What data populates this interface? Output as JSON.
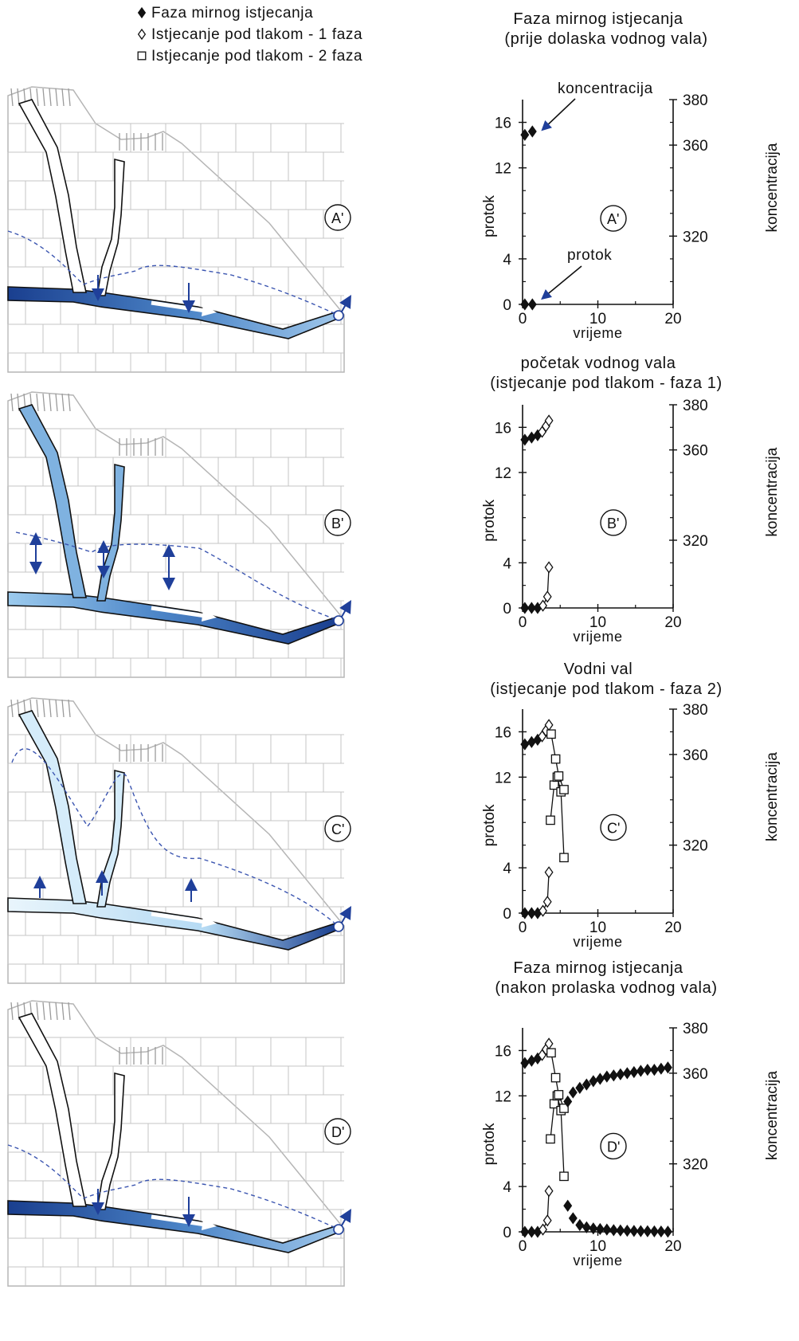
{
  "legend": [
    {
      "symbol": "filled-diamond",
      "label": "Faza mirnog istjecanja"
    },
    {
      "symbol": "open-diamond",
      "label": "Istjecanje pod tlakom - 1 faza"
    },
    {
      "symbol": "open-square",
      "label": "Istjecanje pod tlakom - 2 faza"
    }
  ],
  "colors": {
    "deep_blue": "#1a3f8f",
    "mid_blue": "#4d86c8",
    "light_blue": "#cfe7f7",
    "water_table": "#3b55b0",
    "limestone_line": "#b5b5b5"
  },
  "sections": [
    {
      "label": "A'"
    },
    {
      "label": "B'"
    },
    {
      "label": "C'"
    },
    {
      "label": "D'"
    }
  ],
  "chart_data": [
    {
      "type": "scatter",
      "title": "Faza mirnog istjecanja",
      "subtitle": "(prije dolaska vodnog vala)",
      "panel_label": "A'",
      "xlabel": "vrijeme",
      "ylabel_left": "protok",
      "ylabel_right": "koncentracija",
      "xlim": [
        0,
        20
      ],
      "ylim_left": [
        0,
        18
      ],
      "ylim_right": [
        290,
        380
      ],
      "x_ticks": [
        "0",
        "10",
        "20"
      ],
      "y_ticks_left": [
        "0",
        "4",
        "12",
        "16"
      ],
      "y_ticks_right": [
        "320",
        "360",
        "380"
      ],
      "annotations": [
        "koncentracija",
        "protok"
      ],
      "series": [
        {
          "marker": "filled-diamond",
          "axis": "left",
          "points": [
            [
              0.3,
              0
            ],
            [
              1.3,
              0
            ]
          ]
        },
        {
          "marker": "filled-diamond",
          "axis": "left",
          "points": [
            [
              0.3,
              14.9
            ],
            [
              1.3,
              15.2
            ]
          ]
        }
      ]
    },
    {
      "type": "scatter",
      "title": "početak vodnog vala",
      "subtitle": "(istjecanje pod tlakom - faza 1)",
      "panel_label": "B'",
      "xlabel": "vrijeme",
      "ylabel_left": "protok",
      "ylabel_right": "koncentracija",
      "xlim": [
        0,
        20
      ],
      "ylim_left": [
        0,
        18
      ],
      "ylim_right": [
        290,
        380
      ],
      "x_ticks": [
        "0",
        "10",
        "20"
      ],
      "y_ticks_left": [
        "0",
        "4",
        "12",
        "16"
      ],
      "y_ticks_right": [
        "320",
        "360",
        "380"
      ],
      "series": [
        {
          "marker": "filled-diamond",
          "axis": "left",
          "points": [
            [
              0.3,
              0
            ],
            [
              1.2,
              0
            ],
            [
              2.0,
              0
            ]
          ]
        },
        {
          "marker": "open-diamond",
          "axis": "left",
          "points": [
            [
              2.7,
              0.2
            ],
            [
              3.3,
              1.0
            ],
            [
              3.5,
              3.6
            ]
          ]
        },
        {
          "marker": "filled-diamond",
          "axis": "left",
          "points": [
            [
              0.3,
              14.9
            ],
            [
              1.2,
              15.1
            ],
            [
              2.0,
              15.3
            ]
          ]
        },
        {
          "marker": "open-diamond",
          "axis": "left",
          "points": [
            [
              2.6,
              15.6
            ],
            [
              3.1,
              16.1
            ],
            [
              3.5,
              16.6
            ]
          ]
        }
      ]
    },
    {
      "type": "scatter",
      "title": "Vodni val",
      "subtitle": "(istjecanje pod tlakom - faza 2)",
      "panel_label": "C'",
      "xlabel": "vrijeme",
      "ylabel_left": "protok",
      "ylabel_right": "koncentracija",
      "xlim": [
        0,
        20
      ],
      "ylim_left": [
        0,
        18
      ],
      "ylim_right": [
        290,
        380
      ],
      "x_ticks": [
        "0",
        "10",
        "20"
      ],
      "y_ticks_left": [
        "0",
        "4",
        "12",
        "16"
      ],
      "y_ticks_right": [
        "320",
        "360",
        "380"
      ],
      "series": [
        {
          "marker": "filled-diamond",
          "axis": "left",
          "points": [
            [
              0.3,
              0
            ],
            [
              1.2,
              0
            ],
            [
              2.0,
              0
            ]
          ]
        },
        {
          "marker": "open-diamond",
          "axis": "left",
          "points": [
            [
              2.7,
              0.2
            ],
            [
              3.3,
              1.0
            ],
            [
              3.5,
              3.6
            ]
          ]
        },
        {
          "marker": "open-square",
          "axis": "left",
          "points": [
            [
              3.7,
              8.2
            ],
            [
              4.2,
              11.3
            ],
            [
              4.6,
              12.0
            ],
            [
              5.1,
              10.7
            ],
            [
              5.5,
              4.9
            ]
          ]
        },
        {
          "marker": "filled-diamond",
          "axis": "left",
          "points": [
            [
              0.3,
              14.9
            ],
            [
              1.2,
              15.1
            ],
            [
              2.0,
              15.3
            ]
          ]
        },
        {
          "marker": "open-diamond",
          "axis": "left",
          "points": [
            [
              2.6,
              15.6
            ],
            [
              3.1,
              16.1
            ],
            [
              3.5,
              16.6
            ]
          ]
        },
        {
          "marker": "open-square",
          "axis": "left",
          "points": [
            [
              3.8,
              15.8
            ],
            [
              4.4,
              13.6
            ],
            [
              4.8,
              12.1
            ],
            [
              5.5,
              10.9
            ]
          ]
        }
      ]
    },
    {
      "type": "scatter",
      "title": "Faza mirnog istjecanja",
      "subtitle": "(nakon prolaska vodnog vala)",
      "panel_label": "D'",
      "xlabel": "vrijeme",
      "ylabel_left": "protok",
      "ylabel_right": "koncentracija",
      "xlim": [
        0,
        20
      ],
      "ylim_left": [
        0,
        18
      ],
      "ylim_right": [
        290,
        380
      ],
      "x_ticks": [
        "0",
        "10",
        "20"
      ],
      "y_ticks_left": [
        "0",
        "4",
        "12",
        "16"
      ],
      "y_ticks_right": [
        "320",
        "360",
        "380"
      ],
      "series": [
        {
          "marker": "filled-diamond",
          "axis": "left",
          "points": [
            [
              0.3,
              0
            ],
            [
              1.2,
              0
            ],
            [
              2.0,
              0
            ]
          ]
        },
        {
          "marker": "open-diamond",
          "axis": "left",
          "points": [
            [
              2.7,
              0.2
            ],
            [
              3.3,
              1.0
            ],
            [
              3.5,
              3.6
            ]
          ]
        },
        {
          "marker": "open-square",
          "axis": "left",
          "points": [
            [
              3.7,
              8.2
            ],
            [
              4.2,
              11.3
            ],
            [
              4.6,
              12.0
            ],
            [
              5.1,
              10.7
            ],
            [
              5.5,
              4.9
            ]
          ]
        },
        {
          "marker": "filled-diamond",
          "axis": "left",
          "points": [
            [
              6.0,
              2.3
            ],
            [
              6.7,
              1.2
            ],
            [
              7.6,
              0.6
            ],
            [
              8.5,
              0.4
            ],
            [
              9.4,
              0.3
            ],
            [
              10.3,
              0.25
            ],
            [
              11.2,
              0.2
            ],
            [
              12.1,
              0.15
            ],
            [
              13.0,
              0.12
            ],
            [
              13.9,
              0.1
            ],
            [
              14.8,
              0.08
            ],
            [
              15.7,
              0.06
            ],
            [
              16.6,
              0.05
            ],
            [
              17.5,
              0.04
            ],
            [
              18.4,
              0.03
            ],
            [
              19.3,
              0.02
            ]
          ]
        },
        {
          "marker": "filled-diamond",
          "axis": "left",
          "points": [
            [
              0.3,
              14.9
            ],
            [
              1.2,
              15.1
            ],
            [
              2.0,
              15.3
            ]
          ]
        },
        {
          "marker": "open-diamond",
          "axis": "left",
          "points": [
            [
              2.6,
              15.6
            ],
            [
              3.1,
              16.1
            ],
            [
              3.5,
              16.6
            ]
          ]
        },
        {
          "marker": "open-square",
          "axis": "left",
          "points": [
            [
              3.8,
              15.8
            ],
            [
              4.4,
              13.6
            ],
            [
              4.8,
              12.1
            ],
            [
              5.5,
              10.9
            ]
          ]
        },
        {
          "marker": "filled-diamond",
          "axis": "left",
          "points": [
            [
              6.0,
              11.5
            ],
            [
              6.7,
              12.3
            ],
            [
              7.6,
              12.7
            ],
            [
              8.5,
              13.0
            ],
            [
              9.4,
              13.3
            ],
            [
              10.3,
              13.5
            ],
            [
              11.2,
              13.7
            ],
            [
              12.1,
              13.8
            ],
            [
              13.0,
              13.9
            ],
            [
              13.9,
              14.0
            ],
            [
              14.8,
              14.1
            ],
            [
              15.7,
              14.2
            ],
            [
              16.6,
              14.3
            ],
            [
              17.5,
              14.3
            ],
            [
              18.4,
              14.4
            ],
            [
              19.3,
              14.5
            ]
          ]
        }
      ]
    }
  ]
}
